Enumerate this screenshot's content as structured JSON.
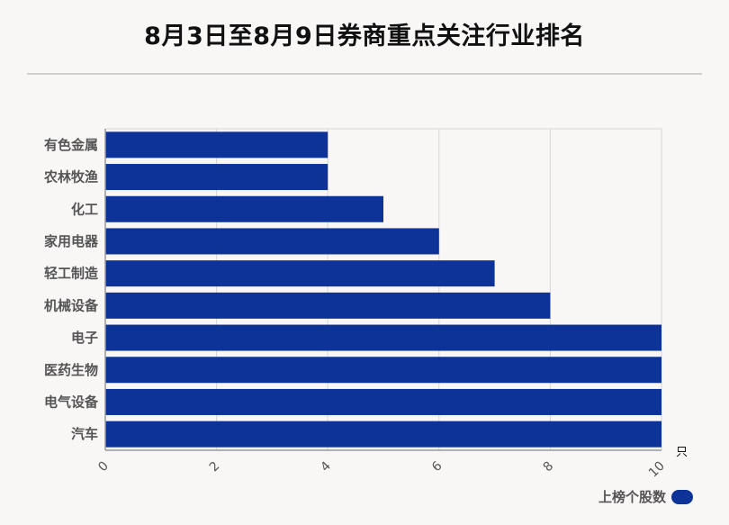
{
  "title": "8月3日至8月9日券商重点关注行业排名",
  "colors": {
    "bar": "#0d3399",
    "grid": "#d6d6d6",
    "axis": "#999999"
  },
  "chart_data": {
    "type": "bar",
    "orientation": "horizontal",
    "title": "8月3日至8月9日券商重点关注行业排名",
    "categories": [
      "有色金属",
      "农林牧渔",
      "化工",
      "家用电器",
      "轻工制造",
      "机械设备",
      "电子",
      "医药生物",
      "电气设备",
      "汽车"
    ],
    "series": [
      {
        "name": "上榜个股数",
        "values": [
          4,
          4,
          5,
          6,
          7,
          8,
          10,
          10,
          10,
          10
        ]
      }
    ],
    "xlim": [
      0,
      10
    ],
    "xticks": [
      "0",
      "2",
      "4",
      "6",
      "8",
      "10"
    ],
    "xunit": "只",
    "grid": true,
    "legend": "bottom-right"
  },
  "legend": {
    "label": "上榜个股数"
  }
}
